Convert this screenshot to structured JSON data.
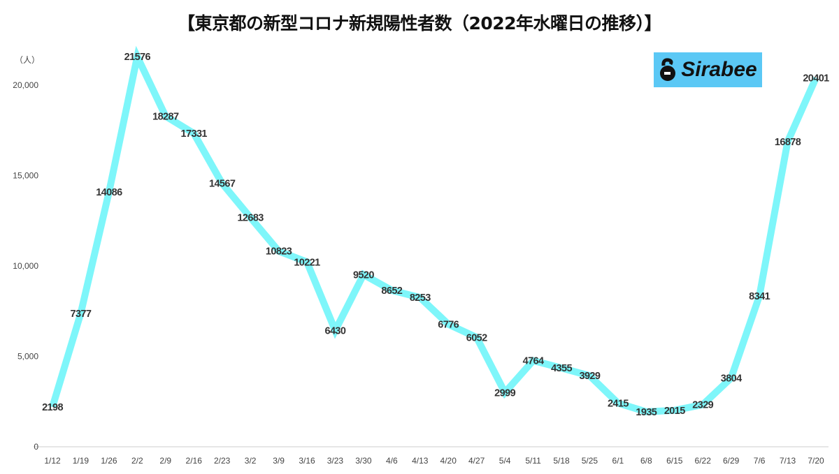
{
  "chart_data": {
    "type": "line",
    "title": "【東京都の新型コロナ新規陽性者数（2022年水曜日の推移）】",
    "ylabel": "（人）",
    "xlabel": "",
    "ylim": [
      0,
      22000
    ],
    "yticks": [
      0,
      5000,
      10000,
      15000,
      20000
    ],
    "ytick_labels": [
      "0",
      "5,000",
      "10,000",
      "15,000",
      "20,000"
    ],
    "grid": false,
    "line_color": "#7ef6fa",
    "categories": [
      "1/12",
      "1/19",
      "1/26",
      "2/2",
      "2/9",
      "2/16",
      "2/23",
      "3/2",
      "3/9",
      "3/16",
      "3/23",
      "3/30",
      "4/6",
      "4/13",
      "4/20",
      "4/27",
      "5/4",
      "5/11",
      "5/18",
      "5/25",
      "6/1",
      "6/8",
      "6/15",
      "6/22",
      "6/29",
      "7/6",
      "7/13",
      "7/20"
    ],
    "values": [
      2198,
      7377,
      14086,
      21576,
      18287,
      17331,
      14567,
      12683,
      10823,
      10221,
      6430,
      9520,
      8652,
      8253,
      6776,
      6052,
      2999,
      4764,
      4355,
      3929,
      2415,
      1935,
      2015,
      2329,
      3804,
      8341,
      16878,
      20401
    ]
  },
  "logo": {
    "text": "Sirabee",
    "color": "#5bc8f5"
  }
}
